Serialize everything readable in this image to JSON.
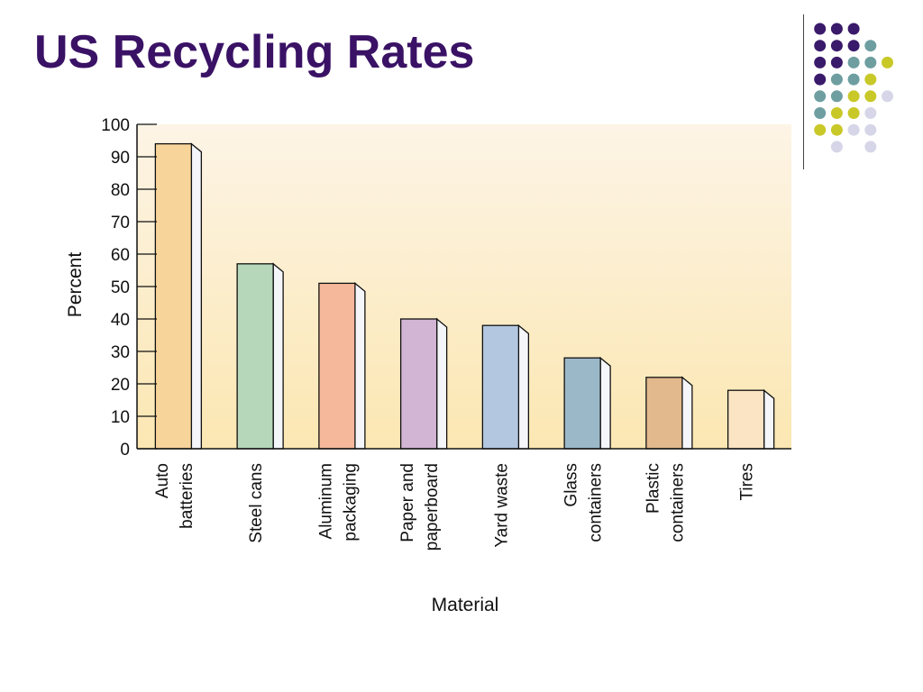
{
  "slide": {
    "title": "US Recycling Rates"
  },
  "decoration": {
    "dot_colors": [
      "#3a1a6a",
      "#6e9ea0",
      "#c9c829",
      "#d6d6e8"
    ]
  },
  "chart_data": {
    "type": "bar",
    "title": "",
    "xlabel": "Material",
    "ylabel": "Percent",
    "ylim": [
      0,
      100
    ],
    "yticks": [
      0,
      10,
      20,
      30,
      40,
      50,
      60,
      70,
      80,
      90,
      100
    ],
    "grid": false,
    "legend": "none",
    "categories": [
      [
        "Auto",
        "batteries"
      ],
      [
        "Steel cans"
      ],
      [
        "Aluminum",
        "packaging"
      ],
      [
        "Paper and",
        "paperboard"
      ],
      [
        "Yard waste"
      ],
      [
        "Glass",
        "containers"
      ],
      [
        "Plastic",
        "containers"
      ],
      [
        "Tires"
      ]
    ],
    "values": [
      94,
      57,
      51,
      40,
      38,
      28,
      22,
      18
    ],
    "colors": [
      "#f7d49a",
      "#b7d7bb",
      "#f5b89a",
      "#d2b5d4",
      "#b3c7e0",
      "#9bb8c8",
      "#e2b98c",
      "#fbe4c4"
    ],
    "background_gradient": [
      "#fdf4e6",
      "#fbe7b2"
    ]
  }
}
